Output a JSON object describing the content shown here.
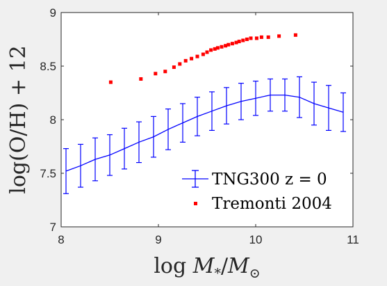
{
  "chart_data": {
    "type": "line",
    "xlabel": "log M*/M⊙",
    "ylabel": "log(O/H)+12",
    "xlim": [
      8,
      11
    ],
    "ylim": [
      7,
      9
    ],
    "xticks": [
      8,
      9,
      10,
      11
    ],
    "yticks": [
      7,
      7.5,
      8,
      8.5,
      9
    ],
    "grid": false,
    "legend_position": "bottom-right",
    "series": [
      {
        "name": "TNG300 z = 0",
        "style": "line-errorbar",
        "color": "#0000ff",
        "x": [
          8.05,
          8.2,
          8.35,
          8.5,
          8.65,
          8.8,
          8.95,
          9.1,
          9.25,
          9.4,
          9.55,
          9.7,
          9.85,
          10.0,
          10.15,
          10.3,
          10.45,
          10.6,
          10.75,
          10.9
        ],
        "y": [
          7.52,
          7.57,
          7.63,
          7.67,
          7.73,
          7.79,
          7.84,
          7.91,
          7.97,
          8.03,
          8.08,
          8.13,
          8.17,
          8.2,
          8.23,
          8.23,
          8.21,
          8.15,
          8.11,
          8.07
        ],
        "yerr": [
          0.21,
          0.2,
          0.2,
          0.19,
          0.19,
          0.19,
          0.19,
          0.19,
          0.18,
          0.18,
          0.18,
          0.17,
          0.17,
          0.16,
          0.15,
          0.15,
          0.19,
          0.2,
          0.21,
          0.18
        ]
      },
      {
        "name": "Tremonti 2004",
        "style": "markers",
        "color": "#ff0000",
        "x": [
          8.51,
          8.82,
          8.97,
          9.07,
          9.16,
          9.22,
          9.28,
          9.34,
          9.4,
          9.46,
          9.5,
          9.54,
          9.58,
          9.61,
          9.65,
          9.69,
          9.72,
          9.76,
          9.8,
          9.83,
          9.87,
          9.91,
          9.95,
          10.01,
          10.06,
          10.13,
          10.24,
          10.41
        ],
        "y": [
          8.35,
          8.38,
          8.43,
          8.45,
          8.49,
          8.52,
          8.55,
          8.57,
          8.59,
          8.61,
          8.63,
          8.65,
          8.66,
          8.67,
          8.68,
          8.69,
          8.7,
          8.71,
          8.72,
          8.73,
          8.74,
          8.75,
          8.76,
          8.76,
          8.77,
          8.77,
          8.78,
          8.79
        ]
      }
    ]
  },
  "colors": {
    "background": "#f0f0f0",
    "plot_area": "#ffffff",
    "axis": "#262626"
  }
}
